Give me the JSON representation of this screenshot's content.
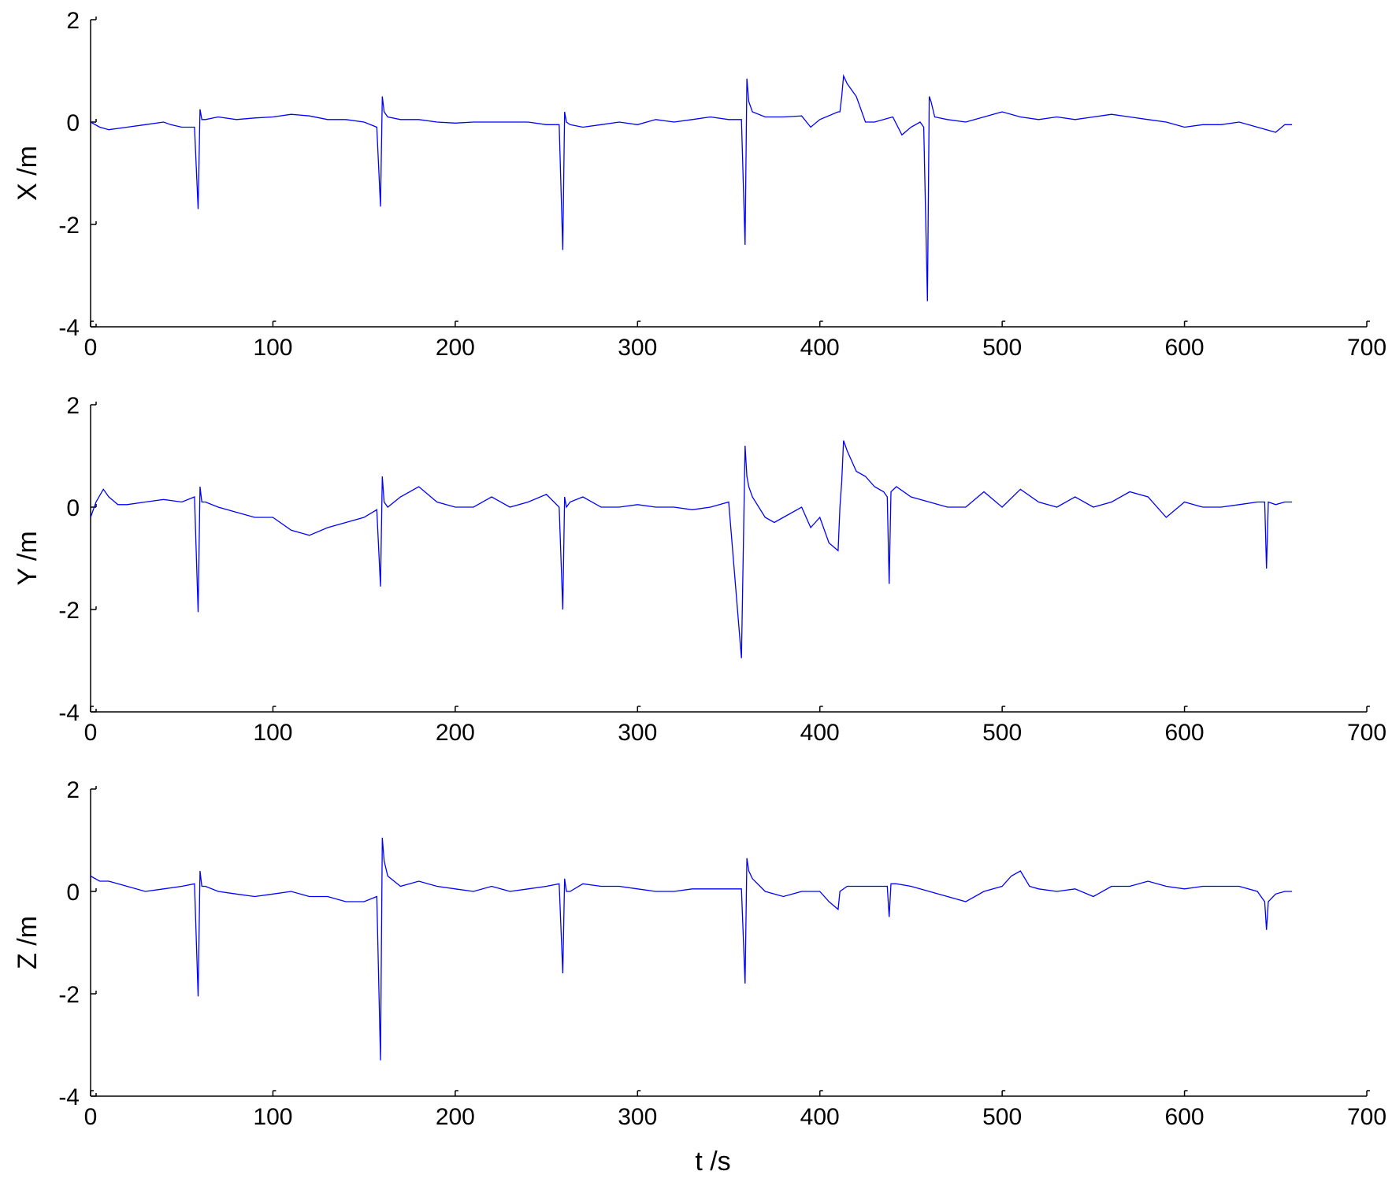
{
  "chart_data": [
    {
      "type": "line",
      "ylabel": "X /m",
      "xlabel": "",
      "xlim": [
        0,
        700
      ],
      "ylim": [
        -4,
        2
      ],
      "xticks": [
        "0",
        "100",
        "200",
        "300",
        "400",
        "500",
        "600",
        "700"
      ],
      "yticks": [
        "2",
        "0",
        "-2",
        "-4"
      ],
      "color": "#0000ff",
      "x": [
        0,
        5,
        10,
        20,
        30,
        40,
        44,
        50,
        57,
        59,
        60,
        61,
        63,
        70,
        80,
        90,
        100,
        110,
        120,
        130,
        140,
        150,
        157,
        159,
        160,
        161,
        163,
        170,
        180,
        190,
        200,
        210,
        220,
        230,
        240,
        250,
        257,
        259,
        260,
        261,
        263,
        270,
        280,
        290,
        300,
        310,
        320,
        330,
        340,
        350,
        357,
        359,
        360,
        361,
        363,
        370,
        380,
        390,
        395,
        400,
        410,
        411,
        412,
        413,
        415,
        420,
        425,
        430,
        440,
        445,
        450,
        455,
        457,
        459,
        460,
        461,
        463,
        470,
        480,
        490,
        500,
        510,
        520,
        530,
        540,
        550,
        560,
        570,
        580,
        590,
        600,
        610,
        620,
        630,
        640,
        650,
        655,
        659
      ],
      "y": [
        0,
        -0.1,
        -0.15,
        -0.1,
        -0.05,
        0,
        -0.05,
        -0.1,
        -0.1,
        -1.7,
        0.25,
        0.05,
        0.05,
        0.1,
        0.05,
        0.08,
        0.1,
        0.15,
        0.12,
        0.05,
        0.05,
        0.0,
        -0.1,
        -1.65,
        0.5,
        0.2,
        0.1,
        0.05,
        0.05,
        0.0,
        -0.02,
        0.0,
        0.0,
        0.0,
        0.0,
        -0.05,
        -0.05,
        -2.5,
        0.2,
        0.0,
        -0.05,
        -0.1,
        -0.05,
        0.0,
        -0.05,
        0.05,
        0.0,
        0.05,
        0.1,
        0.05,
        0.05,
        -2.4,
        0.85,
        0.4,
        0.2,
        0.1,
        0.1,
        0.12,
        -0.1,
        0.05,
        0.2,
        0.2,
        0.5,
        0.9,
        0.75,
        0.5,
        0.0,
        0.0,
        0.1,
        -0.25,
        -0.1,
        0.0,
        -0.1,
        -3.5,
        0.5,
        0.4,
        0.1,
        0.05,
        0.0,
        0.1,
        0.2,
        0.1,
        0.05,
        0.1,
        0.05,
        0.1,
        0.15,
        0.1,
        0.05,
        0.0,
        -0.1,
        -0.05,
        -0.05,
        0.0,
        -0.1,
        -0.2,
        -0.05,
        -0.05
      ]
    },
    {
      "type": "line",
      "ylabel": "Y /m",
      "xlabel": "",
      "xlim": [
        0,
        700
      ],
      "ylim": [
        -4,
        2
      ],
      "xticks": [
        "0",
        "100",
        "200",
        "300",
        "400",
        "500",
        "600",
        "700"
      ],
      "yticks": [
        "2",
        "0",
        "-2",
        "-4"
      ],
      "color": "#0000ff",
      "x": [
        0,
        3,
        7,
        10,
        15,
        20,
        30,
        40,
        50,
        57,
        59,
        60,
        61,
        63,
        70,
        80,
        90,
        100,
        110,
        120,
        130,
        140,
        150,
        157,
        159,
        160,
        161,
        163,
        170,
        180,
        190,
        200,
        210,
        220,
        230,
        240,
        250,
        257,
        259,
        260,
        261,
        263,
        270,
        280,
        290,
        300,
        310,
        320,
        330,
        340,
        350,
        357,
        359,
        360,
        361,
        363,
        370,
        375,
        380,
        390,
        395,
        400,
        405,
        410,
        411,
        412,
        413,
        415,
        420,
        425,
        430,
        435,
        437,
        438,
        439,
        442,
        450,
        460,
        470,
        480,
        490,
        500,
        510,
        520,
        530,
        540,
        550,
        560,
        570,
        580,
        590,
        600,
        610,
        620,
        630,
        640,
        644,
        645,
        646,
        650,
        655,
        659
      ],
      "y": [
        -0.2,
        0.1,
        0.35,
        0.2,
        0.05,
        0.05,
        0.1,
        0.15,
        0.1,
        0.2,
        -2.05,
        0.4,
        0.1,
        0.1,
        0.0,
        -0.1,
        -0.2,
        -0.2,
        -0.45,
        -0.55,
        -0.4,
        -0.3,
        -0.2,
        -0.05,
        -1.55,
        0.6,
        0.1,
        0.0,
        0.2,
        0.4,
        0.1,
        0.0,
        0.0,
        0.2,
        0.0,
        0.1,
        0.25,
        0.0,
        -2.0,
        0.2,
        0.0,
        0.1,
        0.2,
        0.0,
        0.0,
        0.05,
        0.0,
        0.0,
        -0.05,
        0.0,
        0.1,
        -2.95,
        1.2,
        0.6,
        0.4,
        0.2,
        -0.2,
        -0.3,
        -0.2,
        0.0,
        -0.4,
        -0.2,
        -0.7,
        -0.85,
        0.0,
        0.5,
        1.3,
        1.1,
        0.7,
        0.6,
        0.4,
        0.3,
        0.2,
        -1.5,
        0.3,
        0.4,
        0.2,
        0.1,
        0.0,
        0.0,
        0.3,
        0.0,
        0.35,
        0.1,
        0.0,
        0.2,
        0.0,
        0.1,
        0.3,
        0.2,
        -0.2,
        0.1,
        0.0,
        0.0,
        0.05,
        0.1,
        0.1,
        -1.2,
        0.1,
        0.05,
        0.1,
        0.1
      ]
    },
    {
      "type": "line",
      "ylabel": "Z /m",
      "xlabel": "t /s",
      "xlim": [
        0,
        700
      ],
      "ylim": [
        -4,
        2
      ],
      "xticks": [
        "0",
        "100",
        "200",
        "300",
        "400",
        "500",
        "600",
        "700"
      ],
      "yticks": [
        "2",
        "0",
        "-2",
        "-4"
      ],
      "color": "#0000ff",
      "x": [
        0,
        5,
        10,
        20,
        30,
        40,
        50,
        57,
        59,
        60,
        61,
        63,
        70,
        80,
        90,
        100,
        110,
        120,
        130,
        140,
        150,
        157,
        159,
        160,
        161,
        163,
        170,
        180,
        190,
        200,
        210,
        220,
        230,
        240,
        250,
        257,
        259,
        260,
        261,
        263,
        270,
        280,
        290,
        300,
        310,
        320,
        330,
        340,
        350,
        357,
        359,
        360,
        361,
        363,
        370,
        380,
        390,
        400,
        405,
        410,
        411,
        415,
        420,
        430,
        437,
        438,
        439,
        442,
        450,
        460,
        470,
        480,
        490,
        500,
        505,
        510,
        515,
        520,
        530,
        540,
        550,
        560,
        570,
        580,
        590,
        600,
        610,
        620,
        630,
        640,
        644,
        645,
        646,
        650,
        655,
        659
      ],
      "y": [
        0.3,
        0.2,
        0.2,
        0.1,
        0.0,
        0.05,
        0.1,
        0.15,
        -2.05,
        0.4,
        0.1,
        0.1,
        0.0,
        -0.05,
        -0.1,
        -0.05,
        0.0,
        -0.1,
        -0.1,
        -0.2,
        -0.2,
        -0.1,
        -3.3,
        1.05,
        0.6,
        0.3,
        0.1,
        0.2,
        0.1,
        0.05,
        0.0,
        0.1,
        0.0,
        0.05,
        0.1,
        0.15,
        -1.6,
        0.25,
        0.0,
        0.0,
        0.15,
        0.1,
        0.1,
        0.05,
        0.0,
        0.0,
        0.05,
        0.05,
        0.05,
        0.05,
        -1.8,
        0.65,
        0.4,
        0.25,
        0.0,
        -0.1,
        0.0,
        0.0,
        -0.2,
        -0.35,
        0.0,
        0.1,
        0.1,
        0.1,
        0.1,
        -0.5,
        0.15,
        0.15,
        0.1,
        0.0,
        -0.1,
        -0.2,
        0.0,
        0.1,
        0.3,
        0.4,
        0.1,
        0.05,
        0.0,
        0.05,
        -0.1,
        0.1,
        0.1,
        0.2,
        0.1,
        0.05,
        0.1,
        0.1,
        0.1,
        0.0,
        -0.2,
        -0.75,
        -0.2,
        -0.05,
        0.0,
        0.0
      ]
    }
  ]
}
